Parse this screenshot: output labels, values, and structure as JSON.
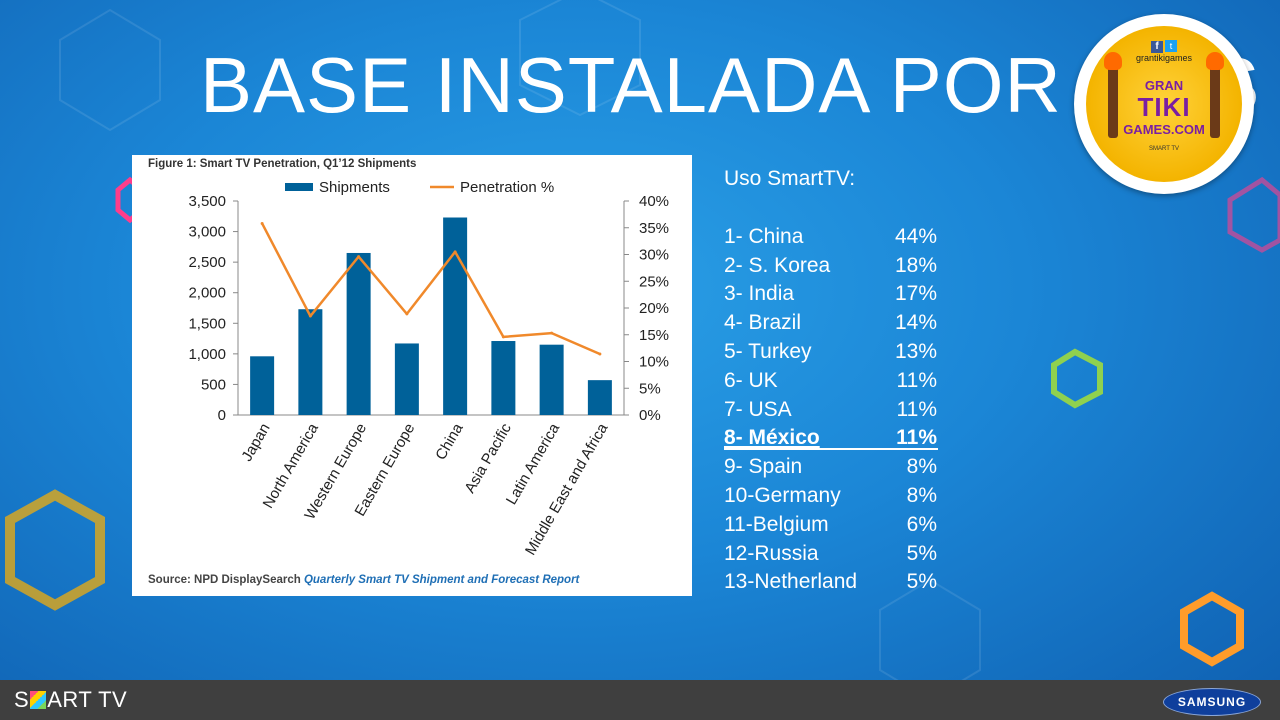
{
  "slide": {
    "title": "BASE INSTALADA POR PAIS"
  },
  "logo": {
    "social": "grantikigames",
    "line1": "GRAN",
    "line2": "TIKI",
    "line3": "GAMES.COM",
    "platforms": "SMART TV"
  },
  "chart_data": {
    "type": "bar",
    "title": "Figure 1: Smart TV Penetration, Q1’12 Shipments",
    "categories": [
      "Japan",
      "North America",
      "Western Europe",
      "Eastern Europe",
      "China",
      "Asia Pacific",
      "Latin America",
      "Middle East and Africa"
    ],
    "series": [
      {
        "name": "Shipments",
        "type": "bar",
        "axis": "left",
        "values": [
          960,
          1730,
          2650,
          1170,
          3230,
          1210,
          1150,
          570
        ],
        "color": "#006199"
      },
      {
        "name": "Penetration %",
        "type": "line",
        "axis": "right",
        "values": [
          35.8,
          18.5,
          29.6,
          18.9,
          30.5,
          14.6,
          15.3,
          11.4
        ],
        "color": "#f0892b"
      }
    ],
    "ylim_left": [
      0,
      3500
    ],
    "ylim_right": [
      0,
      40
    ],
    "yticks_left": [
      "0",
      "500",
      "1,000",
      "1,500",
      "2,000",
      "2,500",
      "3,000",
      "3,500"
    ],
    "yticks_right": [
      "0%",
      "5%",
      "10%",
      "15%",
      "20%",
      "25%",
      "30%",
      "35%",
      "40%"
    ],
    "legend": "top",
    "grid": false,
    "source_prefix": "Source: NPD DisplaySearch ",
    "source_title": "Quarterly Smart TV Shipment and Forecast Report"
  },
  "usage": {
    "heading": "Uso SmartTV:",
    "items": [
      {
        "label": "1-  China",
        "pct": "44%"
      },
      {
        "label": "2-  S. Korea",
        "pct": "18%"
      },
      {
        "label": "3-  India",
        "pct": "17%"
      },
      {
        "label": "4-  Brazil",
        "pct": "14%"
      },
      {
        "label": "5-  Turkey",
        "pct": "13%"
      },
      {
        "label": "6-  UK",
        "pct": "11%"
      },
      {
        "label": "7-  USA",
        "pct": "11%"
      },
      {
        "label": "8-  México",
        "pct": "11%",
        "highlight": true
      },
      {
        "label": "9-  Spain",
        "pct": "8%"
      },
      {
        "label": "10-Germany",
        "pct": "8%"
      },
      {
        "label": "11-Belgium",
        "pct": "6%"
      },
      {
        "label": "12-Russia",
        "pct": "5%"
      },
      {
        "label": "13-Netherland",
        "pct": "5%"
      }
    ]
  },
  "footer": {
    "smarttv_pre": "S",
    "smarttv_post": "ART TV",
    "brand": "SAMSUNG"
  }
}
